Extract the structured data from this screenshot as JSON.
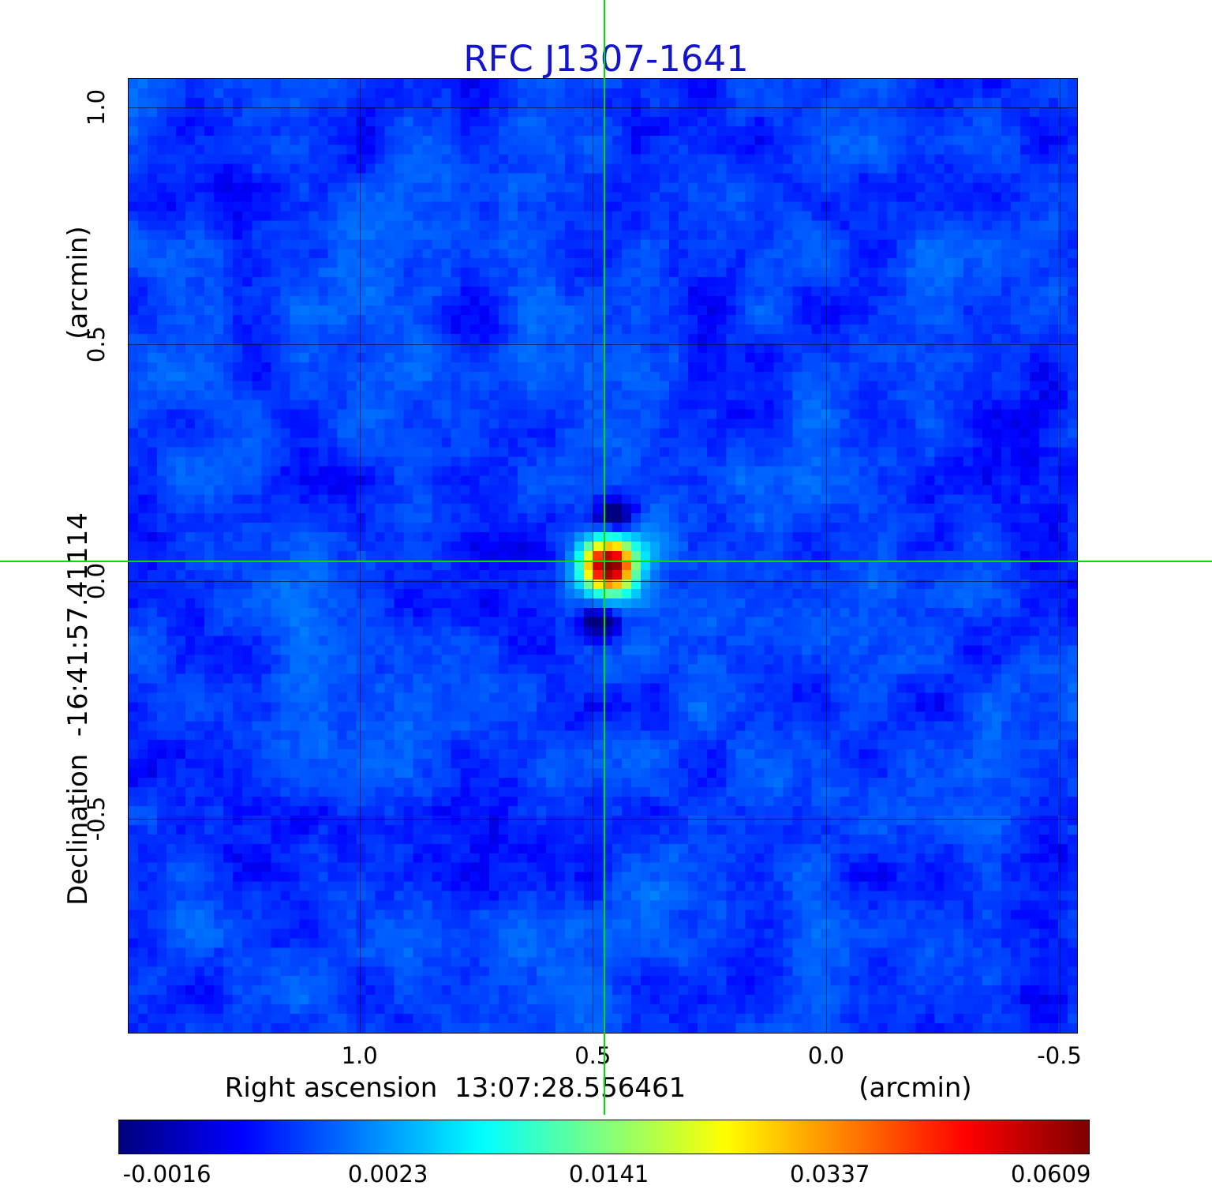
{
  "title": "RFC J1307-1641",
  "colors": {
    "title": "#1414cc",
    "crosshair": "#00dd00",
    "grid": "#000000",
    "background": "#ffffff"
  },
  "axes": {
    "y": {
      "unit_label": "(arcmin)",
      "axis_label": "Declination  -16:41:57.41114",
      "ticks": [
        "1.0",
        "0.5",
        "0.0",
        "-0.5"
      ]
    },
    "x": {
      "axis_label": "Right ascension  13:07:28.556461",
      "unit_label": "(arcmin)",
      "ticks": [
        "1.0",
        "0.5",
        "0.0",
        "-0.5"
      ]
    }
  },
  "colorbar": {
    "tick_labels": [
      "-0.0016",
      "0.0023",
      "0.0141",
      "0.0337",
      "0.0609"
    ]
  },
  "chart_data": {
    "type": "heatmap",
    "title": "RFC J1307-1641",
    "xlabel": "Right ascension 13:07:28.556461 (arcmin)",
    "ylabel": "Declination -16:41:57.41114 (arcmin)",
    "colormap": "jet",
    "x_axis": {
      "left_value": 1.495,
      "right_value": -0.538,
      "ticks": [
        1.0,
        0.5,
        0.0,
        -0.5
      ],
      "unit": "arcmin",
      "direction": "right-to-left"
    },
    "y_axis": {
      "top_value": 1.06,
      "bottom_value": -0.952,
      "ticks": [
        1.0,
        0.5,
        0.0,
        -0.5
      ],
      "unit": "arcmin"
    },
    "value_scale": {
      "type": "quadratic",
      "c2": 0.0622,
      "c1": 0.0003,
      "c0": -0.0016,
      "min": -0.0016,
      "max": 0.0609
    },
    "colorbar_ticks": [
      -0.0016,
      0.0023,
      0.0141,
      0.0337,
      0.0609
    ],
    "crosshair": {
      "x_arcmin": 0.475,
      "y_arcmin": 0.043
    },
    "source": {
      "x_arcmin": 0.475,
      "y_arcmin": 0.043,
      "peak_value": 0.0609,
      "core_sigma_cells": 1.5,
      "halo_amp": 0.006,
      "halo_sigma_cells": 3.2
    },
    "background_noise": {
      "mean": 0.0006,
      "smooth_amp": 0.0011,
      "fine_amp": 0.0005,
      "white_amp": 0.0004
    },
    "negative_blobs": [
      {
        "dx_cells": 0.3,
        "dy_cells": -5,
        "amp": 0.005,
        "sigma_cells": 1.6
      },
      {
        "dx_cells": -0.8,
        "dy_cells": 6,
        "amp": 0.004,
        "sigma_cells": 1.6
      }
    ],
    "sidelobe_streaks": [
      {
        "angle_deg": -66.5,
        "amp": 0.0017,
        "width_cells": 1.1,
        "decay_cells": 48
      },
      {
        "angle_deg": 8.5,
        "amp": 0.0016,
        "width_cells": 1.0,
        "decay_cells": 60
      }
    ],
    "grid_cells": {
      "nx": 100,
      "ny": 101
    },
    "seed": 20240307
  }
}
